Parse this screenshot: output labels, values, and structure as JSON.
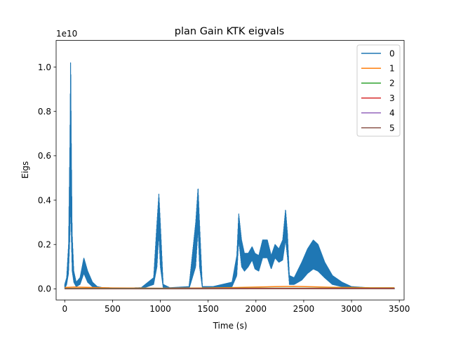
{
  "chart_data": {
    "type": "line",
    "title": "plan Gain KTK eigvals",
    "xlabel": "Time (s)",
    "ylabel": "Eigs",
    "y_offset_text": "1e10",
    "y_scale": 10000000000.0,
    "xlim": [
      -90,
      3550
    ],
    "ylim": [
      -0.05,
      1.12
    ],
    "xticks": [
      0,
      500,
      1000,
      1500,
      2000,
      2500,
      3000,
      3500
    ],
    "xtick_labels": [
      "0",
      "500",
      "1000",
      "1500",
      "2000",
      "2500",
      "3000",
      "3500"
    ],
    "yticks": [
      0.0,
      0.2,
      0.4,
      0.6,
      0.8,
      1.0
    ],
    "ytick_labels": [
      "0.0",
      "0.2",
      "0.4",
      "0.6",
      "0.8",
      "1.0"
    ],
    "grid": false,
    "legend_position": "upper right",
    "series": [
      {
        "name": "0",
        "color": "#1f77b4",
        "description_values": "oscillating envelope, values in units of 1e10",
        "x": [
          0,
          20,
          40,
          55,
          62,
          68,
          78,
          95,
          120,
          160,
          200,
          240,
          290,
          340,
          400,
          600,
          800,
          930,
          965,
          985,
          1000,
          1030,
          1100,
          1300,
          1370,
          1395,
          1410,
          1440,
          1550,
          1750,
          1800,
          1820,
          1850,
          1880,
          1920,
          1960,
          1990,
          2030,
          2070,
          2120,
          2160,
          2200,
          2240,
          2280,
          2310,
          2330,
          2350,
          2400,
          2480,
          2540,
          2600,
          2650,
          2720,
          2800,
          2900,
          3000,
          3200,
          3450
        ],
        "upper": [
          0.02,
          0.05,
          0.2,
          0.7,
          1.07,
          0.7,
          0.25,
          0.08,
          0.03,
          0.05,
          0.14,
          0.08,
          0.03,
          0.01,
          0.005,
          0.003,
          0.005,
          0.05,
          0.3,
          0.43,
          0.3,
          0.02,
          0.005,
          0.01,
          0.3,
          0.46,
          0.3,
          0.01,
          0.01,
          0.03,
          0.15,
          0.34,
          0.22,
          0.16,
          0.16,
          0.19,
          0.16,
          0.15,
          0.22,
          0.22,
          0.15,
          0.2,
          0.18,
          0.22,
          0.36,
          0.25,
          0.06,
          0.05,
          0.12,
          0.18,
          0.22,
          0.2,
          0.12,
          0.06,
          0.03,
          0.01,
          0.004,
          0.002
        ],
        "lower": [
          0.0,
          0.02,
          0.07,
          0.25,
          0.4,
          0.25,
          0.08,
          0.03,
          0.01,
          0.02,
          0.07,
          0.03,
          0.01,
          0.003,
          0.0,
          0.0,
          0.0,
          0.02,
          0.1,
          0.25,
          0.1,
          0.005,
          0.0,
          0.0,
          0.1,
          0.27,
          0.1,
          0.003,
          0.003,
          0.01,
          0.06,
          0.22,
          0.1,
          0.08,
          0.1,
          0.13,
          0.09,
          0.08,
          0.14,
          0.14,
          0.09,
          0.14,
          0.12,
          0.13,
          0.22,
          0.14,
          0.02,
          0.02,
          0.04,
          0.07,
          0.09,
          0.08,
          0.05,
          0.02,
          0.01,
          0.003,
          0.001,
          0.0
        ]
      },
      {
        "name": "1",
        "color": "#ff7f0e",
        "x": [
          0,
          100,
          300,
          500,
          1000,
          1500,
          1800,
          2000,
          2200,
          2400,
          2600,
          2800,
          3000,
          3200,
          3450
        ],
        "values": [
          0.006,
          0.008,
          0.006,
          0.004,
          0.003,
          0.004,
          0.006,
          0.008,
          0.01,
          0.011,
          0.009,
          0.007,
          0.006,
          0.005,
          0.005
        ]
      },
      {
        "name": "2",
        "color": "#2ca02c",
        "x": [
          0,
          1000,
          2000,
          3000,
          3450
        ],
        "values": [
          0.002,
          0.002,
          0.003,
          0.003,
          0.003
        ]
      },
      {
        "name": "3",
        "color": "#d62728",
        "x": [
          0,
          1000,
          2000,
          3000,
          3450
        ],
        "values": [
          0.001,
          0.001,
          0.002,
          0.002,
          0.002
        ]
      },
      {
        "name": "4",
        "color": "#9467bd",
        "x": [
          0,
          1000,
          2000,
          3000,
          3450
        ],
        "values": [
          0.0005,
          0.0005,
          0.001,
          0.001,
          0.001
        ]
      },
      {
        "name": "5",
        "color": "#8c564b",
        "x": [
          0,
          1000,
          2000,
          3000,
          3450
        ],
        "values": [
          0.0002,
          0.0002,
          0.0004,
          0.0004,
          0.0004
        ]
      }
    ]
  }
}
